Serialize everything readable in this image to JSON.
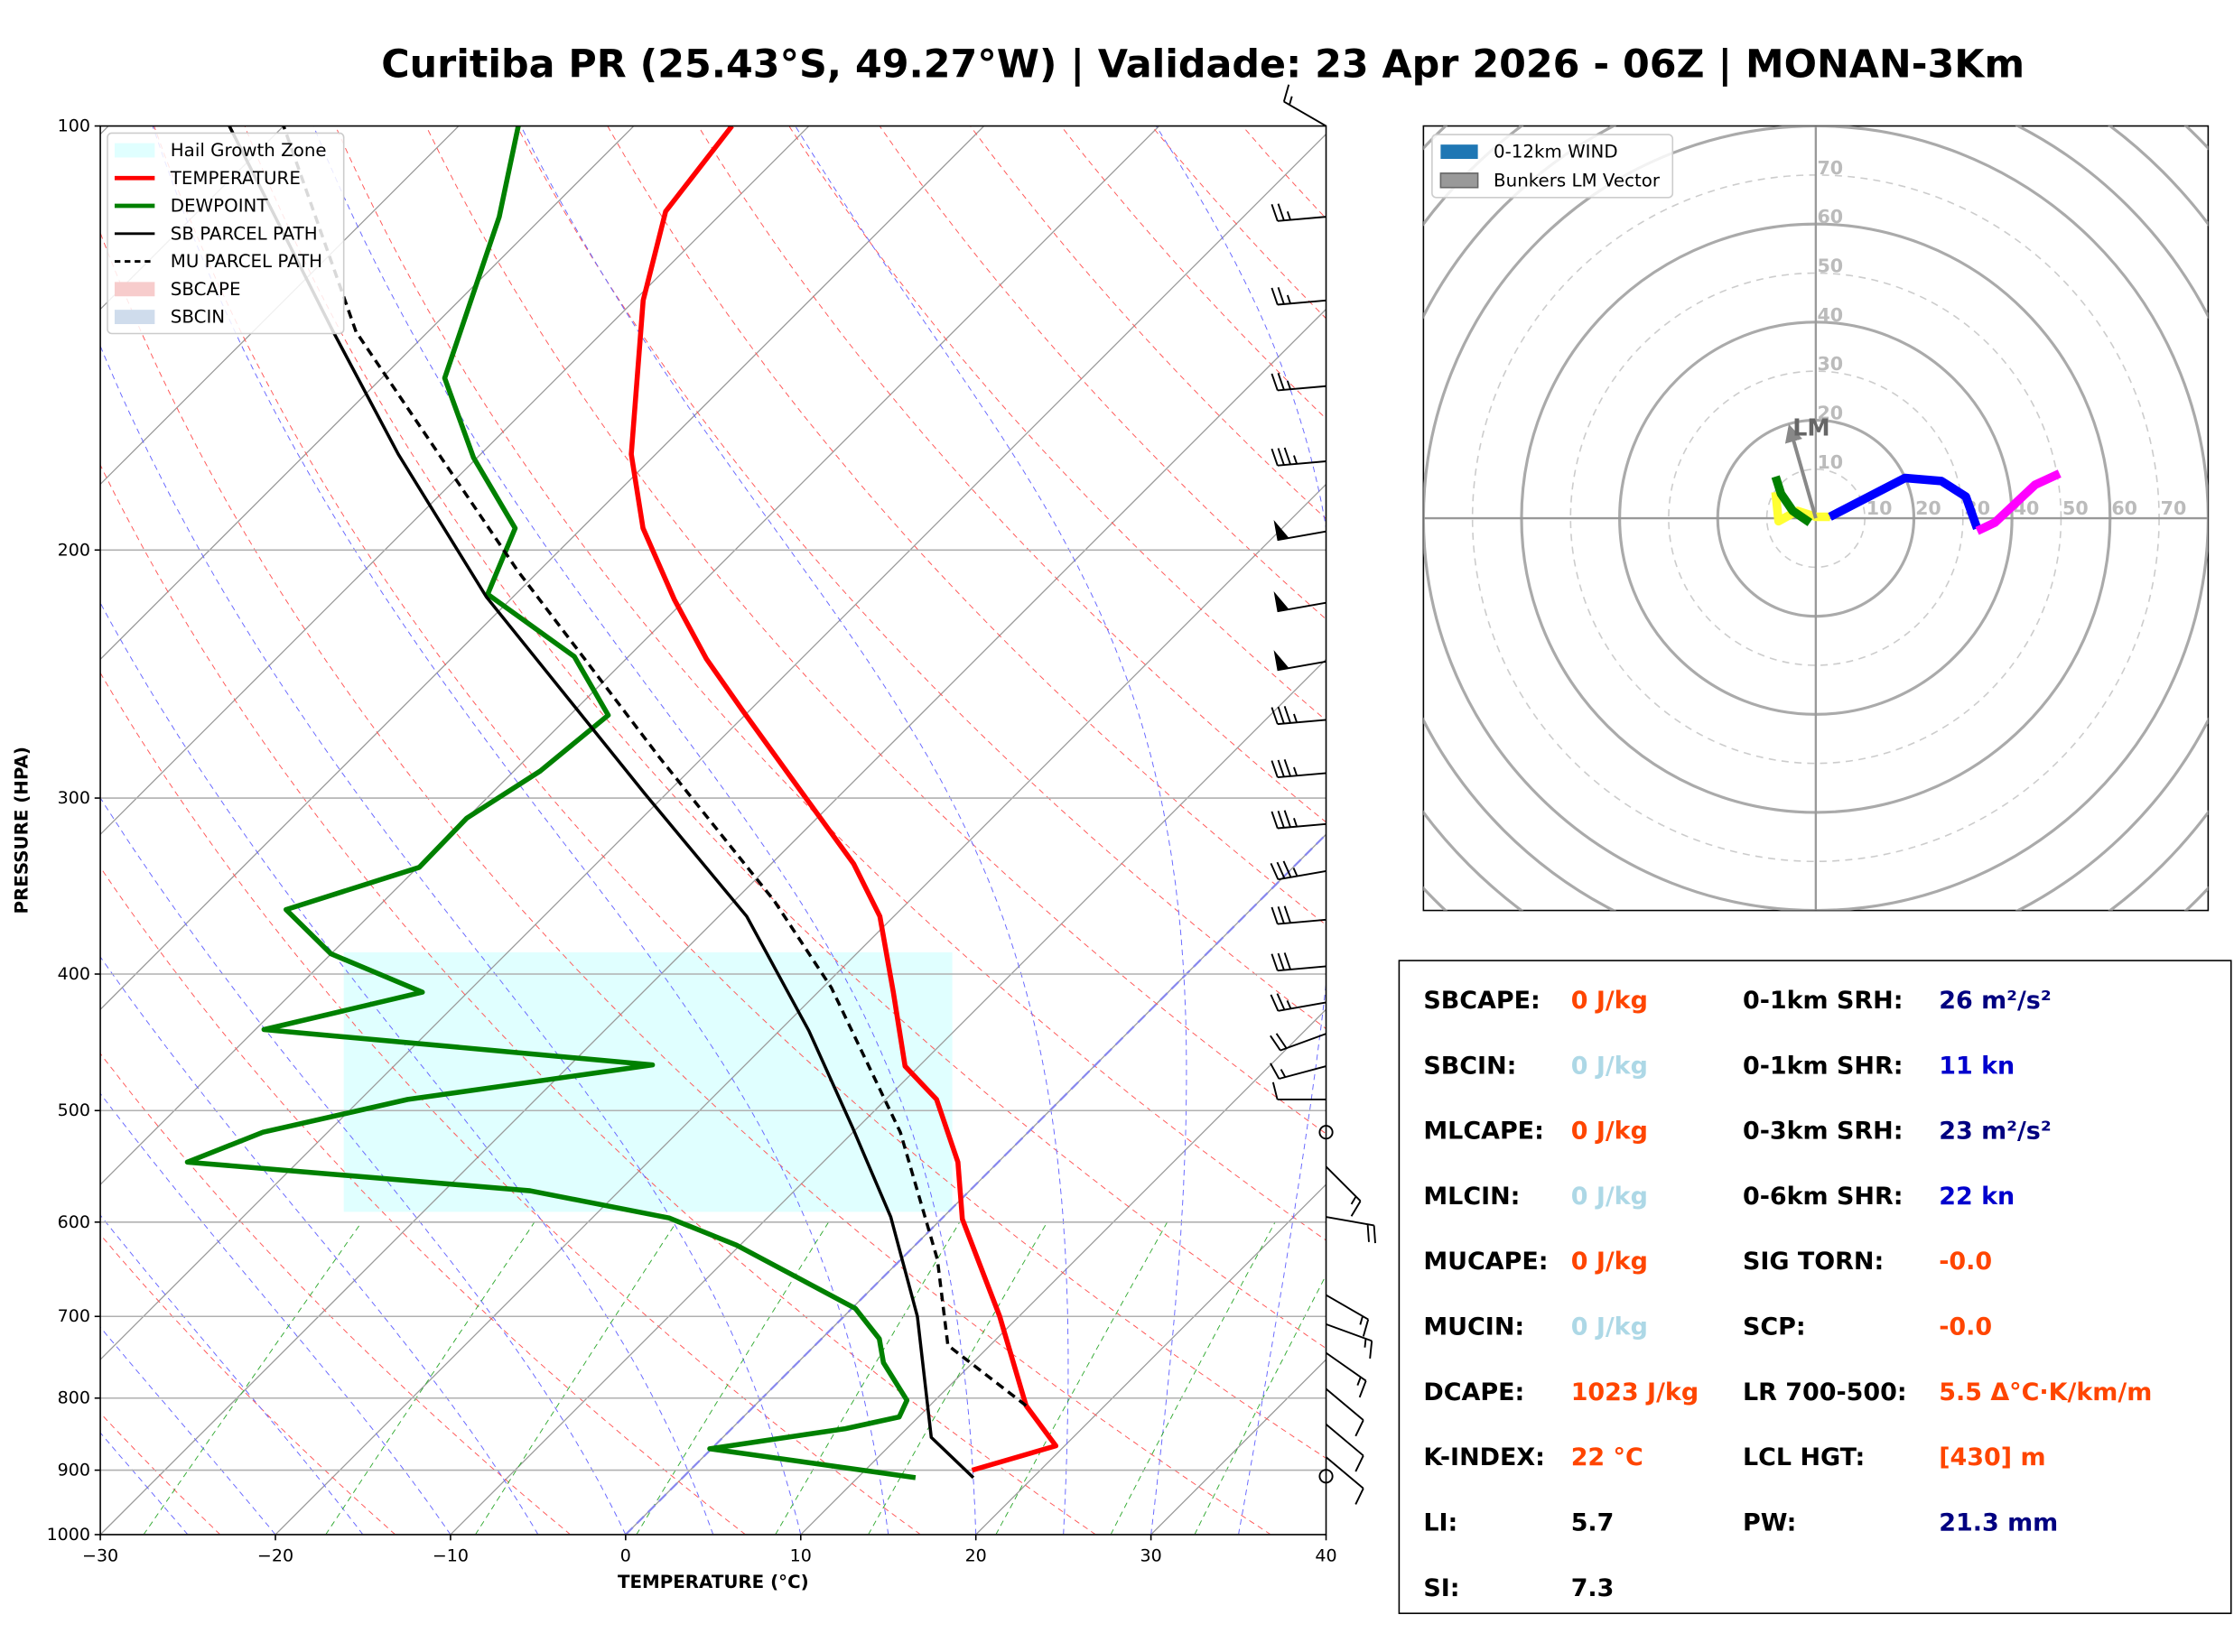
{
  "title": "Curitiba PR (25.43°S, 49.27°W) | Validade: 23 Apr 2026 - 06Z | MONAN-3Km",
  "chart_data": [
    {
      "type": "skewt",
      "xlabel": "TEMPERATURE (°C)",
      "ylabel": "PRESSURE (HPA)",
      "xlim": [
        -30,
        40
      ],
      "ylim": [
        1000,
        100
      ],
      "log_y": true,
      "grid": true,
      "xticks": [
        {
          "value": -30,
          "label": "−30"
        },
        {
          "value": -20,
          "label": "−20"
        },
        {
          "value": -10,
          "label": "−10"
        },
        0,
        10,
        20,
        30,
        40
      ],
      "yticks": [
        100,
        200,
        300,
        400,
        500,
        600,
        700,
        800,
        900,
        1000
      ],
      "areas": [
        {
          "name": "Hail Growth Zone",
          "color": "#e0ffff",
          "pressure": [
            590,
            386
          ]
        },
        {
          "name": "SBCAPE",
          "color": "#f7cccc"
        },
        {
          "name": "SBCIN",
          "color": "#cfdcec"
        }
      ],
      "series": [
        {
          "name": "TEMPERATURE",
          "color": "#ff0000",
          "linestyle": "solid",
          "pressure": [
            900,
            865,
            810,
            700,
            597,
            544,
            491,
            465,
            412,
            364,
            334,
            310,
            260,
            239,
            217,
            193,
            171,
            133,
            115,
            100
          ],
          "values": [
            16.1,
            19.5,
            15.5,
            8.9,
            1.2,
            -2.3,
            -7.1,
            -10.8,
            -15.7,
            -20.8,
            -25.3,
            -29.8,
            -40.4,
            -45.4,
            -50.6,
            -56.5,
            -61.4,
            -69.5,
            -73.3,
            -74.4
          ]
        },
        {
          "name": "DEWPOINT",
          "color": "#008000",
          "linestyle": "solid",
          "pressure": [
            911,
            869,
            841,
            825,
            803,
            755,
            726,
            691,
            623,
            596,
            570,
            544,
            518,
            491,
            464,
            438,
            412,
            387,
            360,
            336,
            310,
            287,
            262,
            238,
            215,
            193,
            172,
            151,
            116,
            100
          ],
          "values": [
            13.3,
            -0.1,
            6.5,
            8.9,
            8.4,
            4.9,
            3.3,
            0.2,
            -10.2,
            -15.6,
            -25.1,
            -46.3,
            -43.7,
            -37.3,
            -25.3,
            -49.5,
            -42.6,
            -50.0,
            -55.1,
            -49.9,
            -50.0,
            -48.5,
            -47.8,
            -53.1,
            -61.6,
            -63.8,
            -70.2,
            -76.4,
            -82.5,
            -86.6
          ]
        },
        {
          "name": "SB PARCEL PATH",
          "color": "#000000",
          "linestyle": "solid",
          "pressure": [
            911,
            853,
            700,
            595,
            514,
            439,
            364,
            298,
            216,
            171,
            140,
            100
          ],
          "values": [
            16.6,
            11.9,
            4.2,
            -3.0,
            -10.3,
            -18.3,
            -28.4,
            -41.2,
            -61.5,
            -74.7,
            -85.4,
            -103.1
          ]
        },
        {
          "name": "MU PARCEL PATH",
          "color": "#000000",
          "linestyle": "dashed",
          "pressure": [
            810,
            734,
            638,
            518,
            409,
            355,
            281,
            207,
            140,
            100
          ],
          "values": [
            15.5,
            7.6,
            2.1,
            -7.3,
            -19.5,
            -27.7,
            -42.4,
            -61.2,
            -84.1,
            -100
          ]
        }
      ],
      "wind": {
        "pressure": [
          100,
          116,
          133,
          153,
          173,
          194,
          218,
          240,
          264,
          288,
          313,
          338,
          366,
          395,
          419,
          441,
          465,
          491,
          518,
          548,
          595,
          676,
          709,
          743,
          788,
          835,
          881,
          909
        ],
        "speed": [
          15,
          25,
          25,
          25,
          35,
          50,
          50,
          50,
          35,
          35,
          35,
          35,
          30,
          30,
          25,
          20,
          15,
          10,
          0,
          15,
          20,
          15,
          15,
          15,
          10,
          10,
          10,
          0
        ],
        "direction": [
          300,
          265,
          265,
          265,
          265,
          260,
          260,
          260,
          265,
          265,
          265,
          260,
          265,
          265,
          260,
          250,
          255,
          270,
          0,
          135,
          100,
          120,
          110,
          125,
          130,
          130,
          130,
          0
        ]
      }
    },
    {
      "type": "hodograph",
      "xlim": [
        -80,
        80
      ],
      "ylim": [
        -80,
        80
      ],
      "rticks": [
        10,
        20,
        30,
        40,
        50,
        60,
        70
      ],
      "legend": [
        {
          "label": "0-12km WIND",
          "color": "#1f77b4"
        },
        {
          "label": "Bunkers LM Vector",
          "color": "#999999"
        }
      ],
      "segments": [
        {
          "color": "#ffff33",
          "u": [
            -8.2,
            -7.6,
            -3.8,
            0,
            2.9
          ],
          "v": [
            5.3,
            -0.6,
            1.5,
            0.3,
            0.3
          ]
        },
        {
          "color": "#008000",
          "u": [
            -1.2,
            -4.7,
            -7.1,
            -8.2
          ],
          "v": [
            -0.9,
            1.5,
            5.0,
            8.5
          ]
        },
        {
          "color": "#0000ff",
          "u": [
            2.9,
            18.2,
            25.6,
            30.6,
            32.9
          ],
          "v": [
            0.3,
            8.2,
            7.6,
            4.4,
            -2.1
          ]
        },
        {
          "color": "#ff00ff",
          "u": [
            32.9,
            36.5,
            44.7,
            49.7
          ],
          "v": [
            -2.6,
            -0.9,
            6.8,
            9.1
          ]
        }
      ],
      "lm": {
        "label": "LM",
        "u": -5.3,
        "v": 18.5,
        "color": "#888888"
      }
    }
  ],
  "indices": {
    "left": [
      {
        "label": "SBCAPE:",
        "value": "0 J/kg",
        "color": "#ff4500"
      },
      {
        "label": "SBCIN:",
        "value": "0 J/kg",
        "color": "#add8e6"
      },
      {
        "label": "MLCAPE:",
        "value": "0 J/kg",
        "color": "#ff4500"
      },
      {
        "label": "MLCIN:",
        "value": "0 J/kg",
        "color": "#add8e6"
      },
      {
        "label": "MUCAPE:",
        "value": "0 J/kg",
        "color": "#ff4500"
      },
      {
        "label": "MUCIN:",
        "value": "0 J/kg",
        "color": "#add8e6"
      },
      {
        "label": "DCAPE:",
        "value": "1023 J/kg",
        "color": "#ff4500"
      },
      {
        "label": "K-INDEX:",
        "value": "22 °C",
        "color": "#ff4500"
      },
      {
        "label": "LI:",
        "value": "5.7",
        "color": "#000000"
      },
      {
        "label": "SI:",
        "value": "7.3",
        "color": "#000000"
      }
    ],
    "right": [
      {
        "label": "0-1km SRH:",
        "value": "26 m²/s²",
        "color": "#000080"
      },
      {
        "label": "0-1km SHR:",
        "value": "11 kn",
        "color": "#0000cd"
      },
      {
        "label": "0-3km SRH:",
        "value": "23 m²/s²",
        "color": "#000080"
      },
      {
        "label": "0-6km SHR:",
        "value": "22 kn",
        "color": "#0000cd"
      },
      {
        "label": "SIG TORN:",
        "value": "-0.0",
        "color": "#ff4500"
      },
      {
        "label": "SCP:",
        "value": "-0.0",
        "color": "#ff4500"
      },
      {
        "label": "LR 700-500:",
        "value": "5.5 Δ°C·K/km/m",
        "color": "#ff4500"
      },
      {
        "label": "LCL HGT:",
        "value": "[430] m",
        "color": "#ff4500"
      },
      {
        "label": "PW:",
        "value": "21.3 mm",
        "color": "#000080"
      }
    ]
  }
}
